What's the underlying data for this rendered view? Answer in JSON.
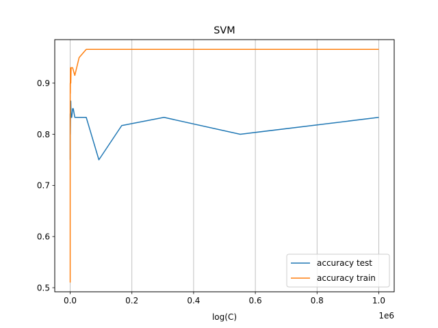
{
  "chart_data": {
    "type": "line",
    "title": "SVM",
    "xlabel": "log(C)",
    "ylabel": "",
    "x_offset_text": "1e6",
    "xlim": [
      -50000,
      1050000
    ],
    "ylim": [
      0.492,
      0.985
    ],
    "xticks": [
      0,
      200000,
      400000,
      600000,
      800000,
      1000000
    ],
    "xtick_labels": [
      "0.0",
      "0.2",
      "0.4",
      "0.6",
      "0.8",
      "1.0"
    ],
    "yticks": [
      0.5,
      0.6,
      0.7,
      0.8,
      0.9
    ],
    "ytick_labels": [
      "0.5",
      "0.6",
      "0.7",
      "0.8",
      "0.9"
    ],
    "grid": "x-vertical",
    "legend_position": "lower right",
    "series": [
      {
        "name": "accuracy test",
        "color": "#1f77b4",
        "points": [
          [
            0.1,
            0.75
          ],
          [
            10,
            0.83
          ],
          [
            100,
            0.84
          ],
          [
            500,
            0.8
          ],
          [
            1000,
            0.833
          ],
          [
            2000,
            0.865
          ],
          [
            3000,
            0.833
          ],
          [
            5000,
            0.833
          ],
          [
            8000,
            0.85
          ],
          [
            10000,
            0.85
          ],
          [
            15000,
            0.833
          ],
          [
            29000,
            0.833
          ],
          [
            52000,
            0.833
          ],
          [
            93000,
            0.75
          ],
          [
            167000,
            0.817
          ],
          [
            304000,
            0.833
          ],
          [
            551000,
            0.8
          ],
          [
            1000000,
            0.833
          ]
        ]
      },
      {
        "name": "accuracy train",
        "color": "#ff7f0e",
        "points": [
          [
            0.1,
            0.51
          ],
          [
            10,
            0.833
          ],
          [
            100,
            0.9
          ],
          [
            500,
            0.88
          ],
          [
            1000,
            0.93
          ],
          [
            2000,
            0.9
          ],
          [
            3000,
            0.93
          ],
          [
            5000,
            0.93
          ],
          [
            8000,
            0.93
          ],
          [
            15000,
            0.915
          ],
          [
            29000,
            0.95
          ],
          [
            52000,
            0.966
          ],
          [
            93000,
            0.966
          ],
          [
            167000,
            0.966
          ],
          [
            304000,
            0.966
          ],
          [
            551000,
            0.966
          ],
          [
            1000000,
            0.966
          ]
        ]
      }
    ]
  }
}
